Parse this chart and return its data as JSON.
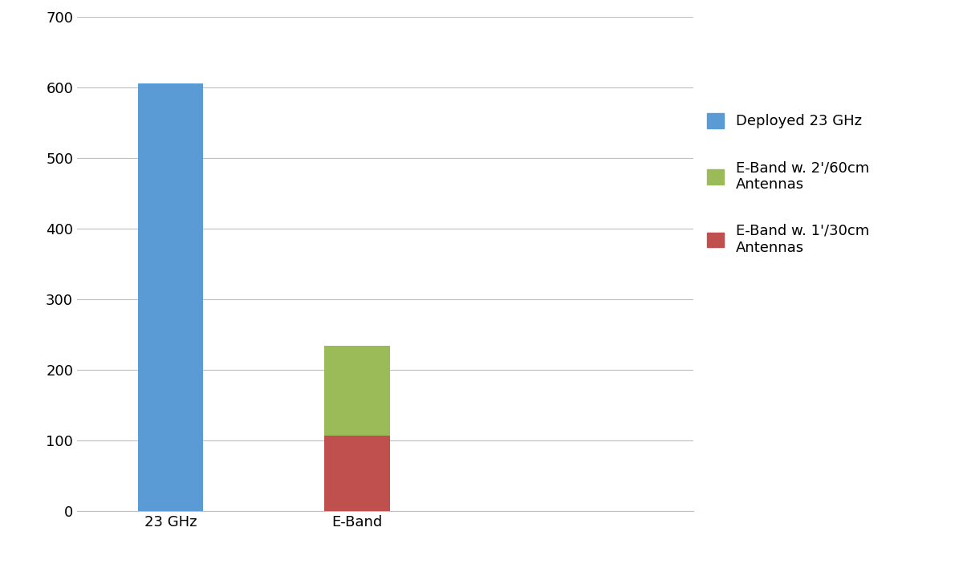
{
  "categories": [
    "23 GHz",
    "E-Band"
  ],
  "deployed_23ghz": [
    606,
    0
  ],
  "eband_30cm": [
    0,
    107
  ],
  "eband_60cm": [
    0,
    127
  ],
  "color_deployed": "#5b9bd5",
  "color_30cm": "#c0504d",
  "color_60cm": "#9bbb59",
  "legend_deployed": "Deployed 23 GHz",
  "legend_60cm": "E-Band w. 2'/60cm\nAntennas",
  "legend_30cm": "E-Band w. 1'/30cm\nAntennas",
  "ylim": [
    0,
    700
  ],
  "yticks": [
    0,
    100,
    200,
    300,
    400,
    500,
    600,
    700
  ],
  "background_color": "#ffffff",
  "grid_color": "#bfbfbf",
  "bar_width": 0.35,
  "figsize": [
    12.0,
    7.08
  ],
  "dpi": 100,
  "xlim": [
    -0.5,
    2.8
  ]
}
